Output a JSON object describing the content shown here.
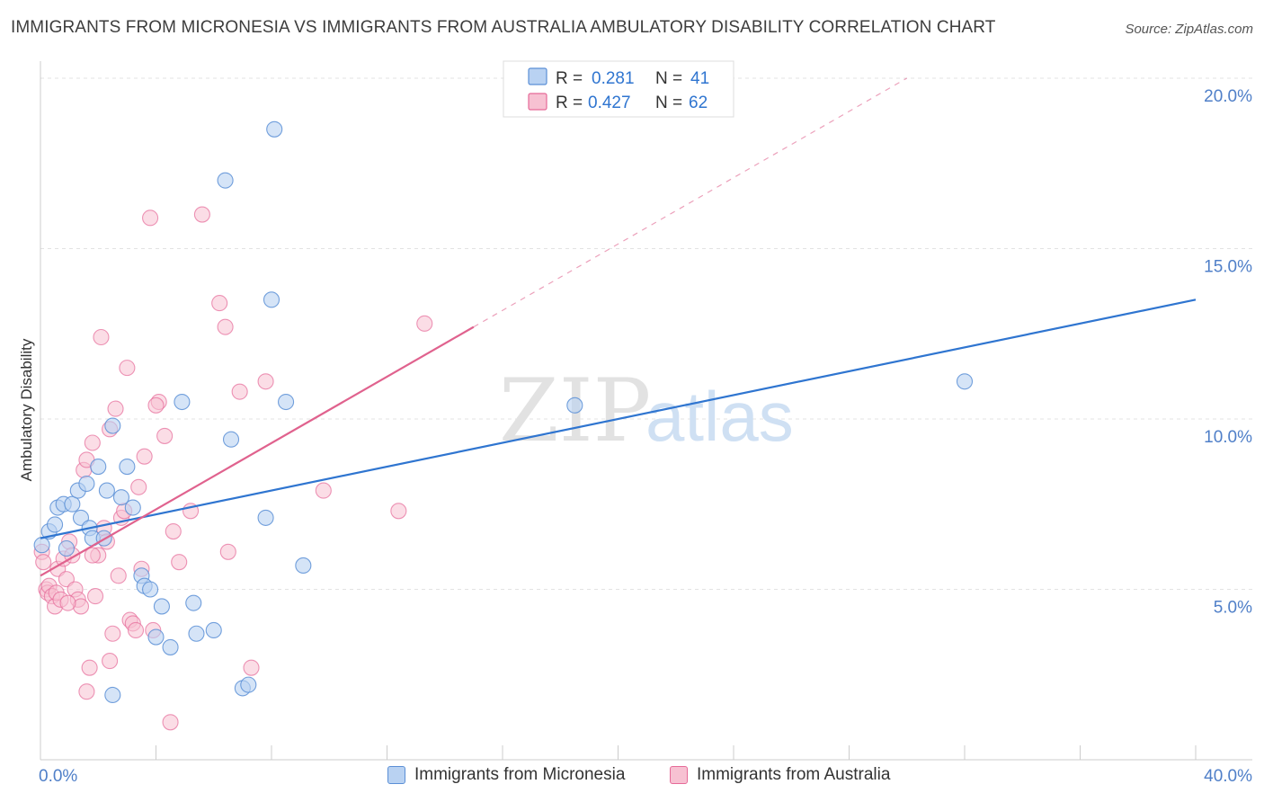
{
  "title": "IMMIGRANTS FROM MICRONESIA VS IMMIGRANTS FROM AUSTRALIA AMBULATORY DISABILITY CORRELATION CHART",
  "source": "Source: ZipAtlas.com",
  "watermark": {
    "zip": "ZIP",
    "atlas": "atlas"
  },
  "colors": {
    "blue": "#5b8fd6",
    "blue_fill": "#b9d2f2",
    "blue_line": "#2f75d0",
    "pink": "#e66a98",
    "pink_fill": "#f7c1d2",
    "pink_line": "#e0628e",
    "axis_text": "#4f7fc8",
    "grid": "#e3e3e3"
  },
  "legend": {
    "r_label": "R =",
    "n_label": "N =",
    "entries": [
      {
        "r": "0.281",
        "n": "41"
      },
      {
        "r": "0.427",
        "n": "62"
      }
    ]
  },
  "chart_data": {
    "type": "scatter",
    "title": "IMMIGRANTS FROM MICRONESIA VS IMMIGRANTS FROM AUSTRALIA AMBULATORY DISABILITY CORRELATION CHART",
    "xlabel": "",
    "ylabel": "Ambulatory Disability",
    "xlim": [
      0,
      40
    ],
    "ylim": [
      0,
      20.5
    ],
    "x_tick_labels": [
      {
        "value": 0,
        "label": "0.0%"
      },
      {
        "value": 40,
        "label": "40.0%"
      }
    ],
    "y_tick_labels": [
      {
        "value": 5,
        "label": "5.0%"
      },
      {
        "value": 10,
        "label": "10.0%"
      },
      {
        "value": 15,
        "label": "15.0%"
      },
      {
        "value": 20,
        "label": "20.0%"
      }
    ],
    "series": [
      {
        "name": "Immigrants from Micronesia",
        "r": 0.281,
        "n": 41,
        "trend": {
          "x0": 0,
          "y0": 6.5,
          "x1": 40,
          "y1": 13.5
        },
        "points": [
          [
            0.05,
            6.3
          ],
          [
            0.3,
            6.7
          ],
          [
            0.5,
            6.9
          ],
          [
            0.6,
            7.4
          ],
          [
            0.8,
            7.5
          ],
          [
            0.9,
            6.2
          ],
          [
            1.1,
            7.5
          ],
          [
            1.3,
            7.9
          ],
          [
            1.4,
            7.1
          ],
          [
            1.6,
            8.1
          ],
          [
            1.7,
            6.8
          ],
          [
            1.8,
            6.5
          ],
          [
            2.0,
            8.6
          ],
          [
            2.2,
            6.5
          ],
          [
            2.3,
            7.9
          ],
          [
            2.5,
            9.8
          ],
          [
            2.8,
            7.7
          ],
          [
            3.0,
            8.6
          ],
          [
            3.2,
            7.4
          ],
          [
            3.5,
            5.4
          ],
          [
            3.6,
            5.1
          ],
          [
            3.8,
            5.0
          ],
          [
            4.0,
            3.6
          ],
          [
            4.2,
            4.5
          ],
          [
            4.5,
            3.3
          ],
          [
            4.9,
            10.5
          ],
          [
            5.3,
            4.6
          ],
          [
            5.4,
            3.7
          ],
          [
            6.0,
            3.8
          ],
          [
            6.4,
            17.0
          ],
          [
            6.6,
            9.4
          ],
          [
            7.0,
            2.1
          ],
          [
            7.2,
            2.2
          ],
          [
            7.8,
            7.1
          ],
          [
            8.0,
            13.5
          ],
          [
            8.1,
            18.5
          ],
          [
            8.5,
            10.5
          ],
          [
            9.1,
            5.7
          ],
          [
            2.5,
            1.9
          ],
          [
            18.5,
            10.4
          ],
          [
            32.0,
            11.1
          ]
        ]
      },
      {
        "name": "Immigrants from Australia",
        "r": 0.427,
        "n": 62,
        "trend": {
          "x0": 0,
          "y0": 5.4,
          "x1": 15.0,
          "y1": 12.7,
          "dash_to_x": 30.0,
          "dash_to_y": 20.0
        },
        "points": [
          [
            0.05,
            6.1
          ],
          [
            0.1,
            5.8
          ],
          [
            0.2,
            5.0
          ],
          [
            0.25,
            4.9
          ],
          [
            0.3,
            5.1
          ],
          [
            0.4,
            4.8
          ],
          [
            0.5,
            4.5
          ],
          [
            0.55,
            4.9
          ],
          [
            0.6,
            5.6
          ],
          [
            0.7,
            4.7
          ],
          [
            0.8,
            5.9
          ],
          [
            0.9,
            5.3
          ],
          [
            1.0,
            6.4
          ],
          [
            1.1,
            6.0
          ],
          [
            1.2,
            5.0
          ],
          [
            1.3,
            4.7
          ],
          [
            1.4,
            4.5
          ],
          [
            1.5,
            8.5
          ],
          [
            1.6,
            8.8
          ],
          [
            1.7,
            2.7
          ],
          [
            1.8,
            9.3
          ],
          [
            1.9,
            4.8
          ],
          [
            2.0,
            6.0
          ],
          [
            2.1,
            12.4
          ],
          [
            2.2,
            6.8
          ],
          [
            2.3,
            6.4
          ],
          [
            2.4,
            9.7
          ],
          [
            2.5,
            3.7
          ],
          [
            2.6,
            10.3
          ],
          [
            2.7,
            5.4
          ],
          [
            2.8,
            7.1
          ],
          [
            2.9,
            7.3
          ],
          [
            3.0,
            11.5
          ],
          [
            3.1,
            4.1
          ],
          [
            3.2,
            4.0
          ],
          [
            3.3,
            3.8
          ],
          [
            3.4,
            8.0
          ],
          [
            3.5,
            5.6
          ],
          [
            3.6,
            8.9
          ],
          [
            3.8,
            15.9
          ],
          [
            4.1,
            10.5
          ],
          [
            4.3,
            9.5
          ],
          [
            4.5,
            1.1
          ],
          [
            4.6,
            6.7
          ],
          [
            4.8,
            5.8
          ],
          [
            5.2,
            7.3
          ],
          [
            5.6,
            16.0
          ],
          [
            6.2,
            13.4
          ],
          [
            6.4,
            12.7
          ],
          [
            6.5,
            6.1
          ],
          [
            6.9,
            10.8
          ],
          [
            7.3,
            2.7
          ],
          [
            7.8,
            11.1
          ],
          [
            9.8,
            7.9
          ],
          [
            12.4,
            7.3
          ],
          [
            13.3,
            12.8
          ],
          [
            2.4,
            2.9
          ],
          [
            1.6,
            2.0
          ],
          [
            4.0,
            10.4
          ],
          [
            1.8,
            6.0
          ],
          [
            0.95,
            4.6
          ],
          [
            3.9,
            3.8
          ]
        ]
      }
    ]
  },
  "bottom_legend": [
    {
      "label": "Immigrants from Micronesia"
    },
    {
      "label": "Immigrants from Australia"
    }
  ]
}
